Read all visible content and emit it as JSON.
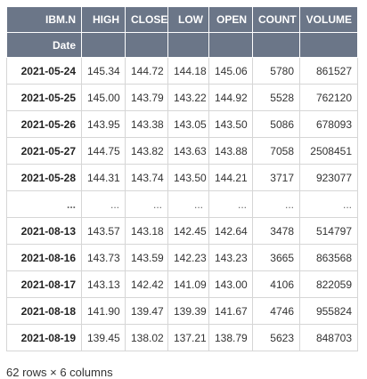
{
  "table": {
    "index_label": "IBM.N",
    "index_name": "Date",
    "columns": [
      "HIGH",
      "CLOSE",
      "LOW",
      "OPEN",
      "COUNT",
      "VOLUME"
    ],
    "rows": [
      {
        "date": "2021-05-24",
        "values": [
          "145.34",
          "144.72",
          "144.18",
          "145.06",
          "5780",
          "861527"
        ]
      },
      {
        "date": "2021-05-25",
        "values": [
          "145.00",
          "143.79",
          "143.22",
          "144.92",
          "5528",
          "762120"
        ]
      },
      {
        "date": "2021-05-26",
        "values": [
          "143.95",
          "143.38",
          "143.05",
          "143.50",
          "5086",
          "678093"
        ]
      },
      {
        "date": "2021-05-27",
        "values": [
          "144.75",
          "143.82",
          "143.63",
          "143.88",
          "7058",
          "2508451"
        ]
      },
      {
        "date": "2021-05-28",
        "values": [
          "144.31",
          "143.74",
          "143.50",
          "144.21",
          "3717",
          "923077"
        ]
      },
      {
        "date": "...",
        "values": [
          "...",
          "...",
          "...",
          "...",
          "...",
          "..."
        ]
      },
      {
        "date": "2021-08-13",
        "values": [
          "143.57",
          "143.18",
          "142.45",
          "142.64",
          "3478",
          "514797"
        ]
      },
      {
        "date": "2021-08-16",
        "values": [
          "143.73",
          "143.59",
          "142.23",
          "143.23",
          "3665",
          "863568"
        ]
      },
      {
        "date": "2021-08-17",
        "values": [
          "143.13",
          "142.42",
          "141.09",
          "143.00",
          "4106",
          "822059"
        ]
      },
      {
        "date": "2021-08-18",
        "values": [
          "141.90",
          "139.47",
          "139.39",
          "141.67",
          "4746",
          "955824"
        ]
      },
      {
        "date": "2021-08-19",
        "values": [
          "139.45",
          "138.02",
          "137.21",
          "138.79",
          "5623",
          "848703"
        ]
      }
    ]
  },
  "footer": {
    "shape_text": "62 rows × 6 columns"
  }
}
